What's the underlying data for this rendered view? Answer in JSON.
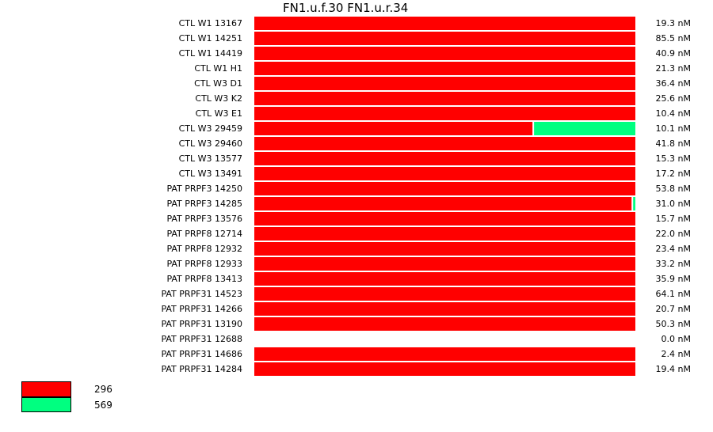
{
  "chart_data": {
    "type": "bar",
    "orientation": "horizontal",
    "stacked": true,
    "normalized": true,
    "title": "FN1.u.f.30  FN1.u.r.34",
    "categories": [
      "CTL W1 13167",
      "CTL W1 14251",
      "CTL W1 14419",
      "CTL W1 H1",
      "CTL W3 D1",
      "CTL W3 K2",
      "CTL W3 E1",
      "CTL W3 29459",
      "CTL W3 29460",
      "CTL W3 13577",
      "CTL W3 13491",
      "PAT PRPF3 14250",
      "PAT PRPF3 14285",
      "PAT PRPF3 13576",
      "PAT PRPF8 12714",
      "PAT PRPF8 12932",
      "PAT PRPF8 12933",
      "PAT PRPF8 13413",
      "PAT PRPF31 14523",
      "PAT PRPF31 14266",
      "PAT PRPF31 13190",
      "PAT PRPF31 12688",
      "PAT PRPF31 14686",
      "PAT PRPF31 14284"
    ],
    "totals": [
      "19.3 nM",
      "85.5 nM",
      "40.9 nM",
      "21.3 nM",
      "36.4 nM",
      "25.6 nM",
      "10.4 nM",
      "10.1 nM",
      "41.8 nM",
      "15.3 nM",
      "17.2 nM",
      "53.8 nM",
      "31.0 nM",
      "15.7 nM",
      "22.0 nM",
      "23.4 nM",
      "33.2 nM",
      "35.9 nM",
      "64.1 nM",
      "20.7 nM",
      "50.3 nM",
      "0.0 nM",
      "2.4 nM",
      "19.4 nM"
    ],
    "series": [
      {
        "name": "296",
        "color": "#ff0000",
        "values": [
          1,
          1,
          1,
          1,
          1,
          1,
          1,
          0.73,
          1,
          1,
          1,
          1,
          0.99,
          1,
          1,
          1,
          1,
          1,
          1,
          1,
          1,
          0,
          1,
          1
        ]
      },
      {
        "name": "569",
        "color": "#00ff80",
        "values": [
          0,
          0,
          0,
          0,
          0,
          0,
          0,
          0.27,
          0,
          0,
          0,
          0,
          0.01,
          0,
          0,
          0,
          0,
          0,
          0,
          0,
          0,
          0,
          0,
          0
        ]
      }
    ],
    "xlim": [
      0,
      1
    ],
    "grid": false,
    "legend": "bottom-left"
  }
}
